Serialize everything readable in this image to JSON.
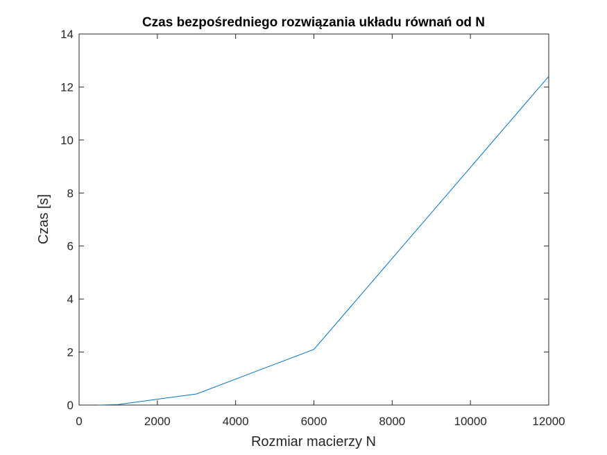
{
  "chart_data": {
    "type": "line",
    "title": "Czas bezpośredniego rozwiązania układu równań od N",
    "xlabel": "Rozmiar macierzy N",
    "ylabel": "Czas [s]",
    "xlim": [
      0,
      12000
    ],
    "ylim": [
      0,
      14
    ],
    "xticks": [
      0,
      2000,
      4000,
      6000,
      8000,
      10000,
      12000
    ],
    "yticks": [
      0,
      2,
      4,
      6,
      8,
      10,
      12,
      14
    ],
    "grid": false,
    "series": [
      {
        "color": "#0072BD",
        "x": [
          500,
          1000,
          3000,
          6000,
          12000
        ],
        "y": [
          0.0,
          0.02,
          0.42,
          2.1,
          12.4
        ]
      }
    ]
  }
}
